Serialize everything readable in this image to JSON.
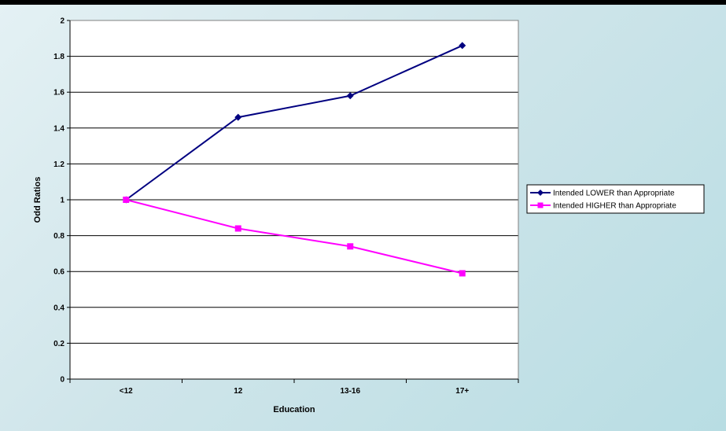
{
  "chart_data": {
    "type": "line",
    "categories": [
      "<12",
      "12",
      "13-16",
      "17+"
    ],
    "xlabel": "Education",
    "ylabel": "Odd Ratios",
    "ylim": [
      0,
      2
    ],
    "yticks": [
      "0",
      "0.2",
      "0.4",
      "0.6",
      "0.8",
      "1",
      "1.2",
      "1.4",
      "1.6",
      "1.8",
      "2"
    ],
    "grid": true,
    "legend_position": "right",
    "series": [
      {
        "name": "Intended LOWER than Appropriate",
        "values": [
          1.0,
          1.46,
          1.58,
          1.86
        ],
        "color": "#000080",
        "marker": "diamond"
      },
      {
        "name": "Intended HIGHER than Appropriate",
        "values": [
          1.0,
          0.84,
          0.74,
          0.59
        ],
        "color": "#ff00ff",
        "marker": "square"
      }
    ]
  }
}
